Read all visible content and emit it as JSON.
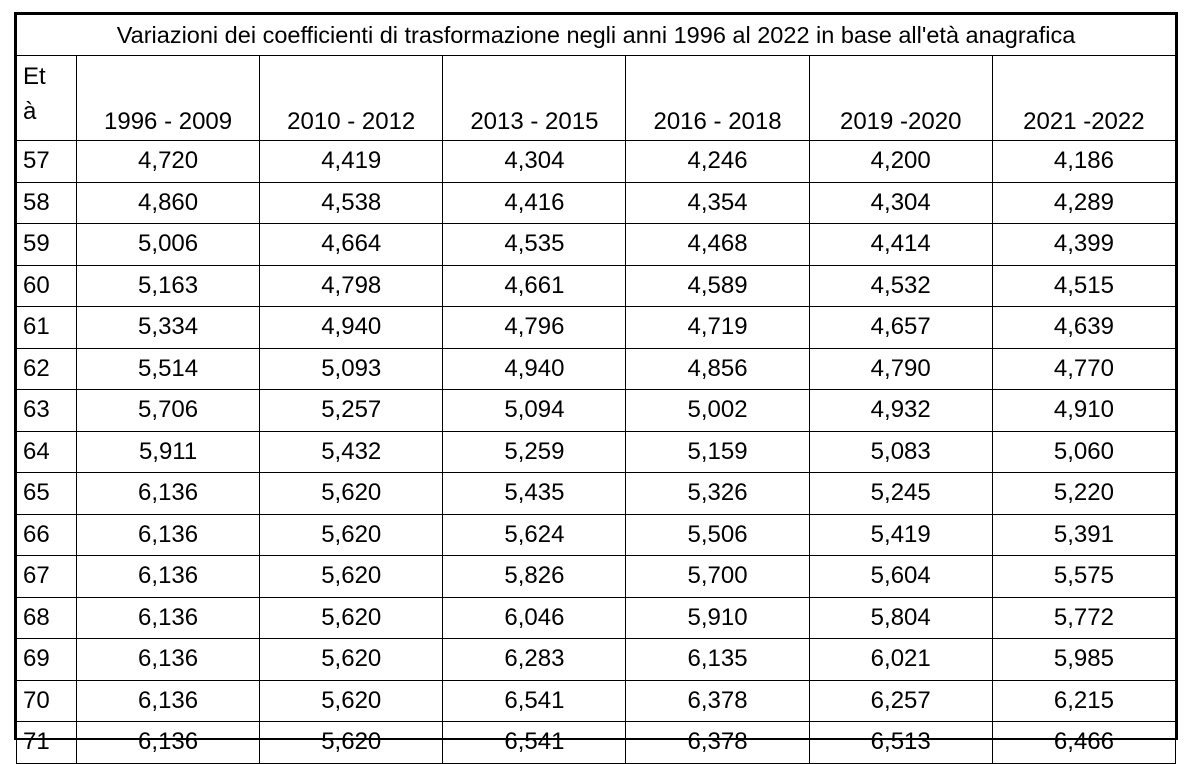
{
  "table": {
    "title": "Variazioni dei coefficienti di trasformazione negli anni 1996 al 2022 in base all'età anagrafica",
    "age_header_line1": "Et",
    "age_header_line2": "à",
    "columns": [
      "1996 - 2009",
      "2010 - 2012",
      "2013 - 2015",
      "2016 - 2018",
      "2019 -2020",
      "2021 -2022"
    ],
    "rows": [
      {
        "age": "57",
        "values": [
          "4,720",
          "4,419",
          "4,304",
          "4,246",
          "4,200",
          "4,186"
        ]
      },
      {
        "age": "58",
        "values": [
          "4,860",
          "4,538",
          "4,416",
          "4,354",
          "4,304",
          "4,289"
        ]
      },
      {
        "age": "59",
        "values": [
          "5,006",
          "4,664",
          "4,535",
          "4,468",
          "4,414",
          "4,399"
        ]
      },
      {
        "age": "60",
        "values": [
          "5,163",
          "4,798",
          "4,661",
          "4,589",
          "4,532",
          "4,515"
        ]
      },
      {
        "age": "61",
        "values": [
          "5,334",
          "4,940",
          "4,796",
          "4,719",
          "4,657",
          "4,639"
        ]
      },
      {
        "age": "62",
        "values": [
          "5,514",
          "5,093",
          "4,940",
          "4,856",
          "4,790",
          "4,770"
        ]
      },
      {
        "age": "63",
        "values": [
          "5,706",
          "5,257",
          "5,094",
          "5,002",
          "4,932",
          "4,910"
        ]
      },
      {
        "age": "64",
        "values": [
          "5,911",
          "5,432",
          "5,259",
          "5,159",
          "5,083",
          "5,060"
        ]
      },
      {
        "age": "65",
        "values": [
          "6,136",
          "5,620",
          "5,435",
          "5,326",
          "5,245",
          "5,220"
        ]
      },
      {
        "age": "66",
        "values": [
          "6,136",
          "5,620",
          "5,624",
          "5,506",
          "5,419",
          "5,391"
        ]
      },
      {
        "age": "67",
        "values": [
          "6,136",
          "5,620",
          "5,826",
          "5,700",
          "5,604",
          "5,575"
        ]
      },
      {
        "age": "68",
        "values": [
          "6,136",
          "5,620",
          "6,046",
          "5,910",
          "5,804",
          "5,772"
        ]
      },
      {
        "age": "69",
        "values": [
          "6,136",
          "5,620",
          "6,283",
          "6,135",
          "6,021",
          "5,985"
        ]
      },
      {
        "age": "70",
        "values": [
          "6,136",
          "5,620",
          "6,541",
          "6,378",
          "6,257",
          "6,215"
        ]
      },
      {
        "age": "71",
        "values": [
          "6,136",
          "5,620",
          "6,541",
          "6,378",
          "6,513",
          "6,466"
        ]
      }
    ]
  }
}
